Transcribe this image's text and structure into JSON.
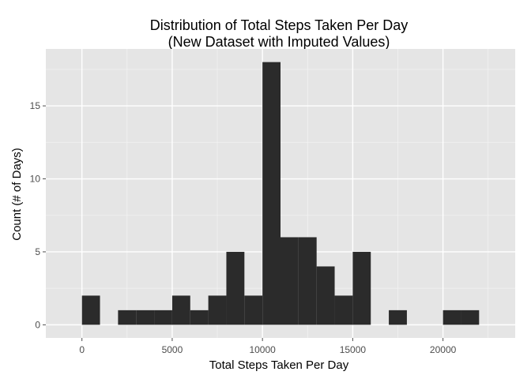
{
  "chart_data": {
    "type": "bar",
    "subtype": "histogram",
    "title_line1": "Distribution of Total Steps Taken Per Day",
    "title_line2": "(New Dataset with Imputed Values)",
    "xlabel": "Total Steps Taken Per Day",
    "ylabel": "Count (# of Days)",
    "bin_width": 1000,
    "bins": [
      {
        "start": 0,
        "count": 2
      },
      {
        "start": 1000,
        "count": 0
      },
      {
        "start": 2000,
        "count": 1
      },
      {
        "start": 3000,
        "count": 1
      },
      {
        "start": 4000,
        "count": 1
      },
      {
        "start": 5000,
        "count": 2
      },
      {
        "start": 6000,
        "count": 1
      },
      {
        "start": 7000,
        "count": 2
      },
      {
        "start": 8000,
        "count": 5
      },
      {
        "start": 9000,
        "count": 2
      },
      {
        "start": 10000,
        "count": 18
      },
      {
        "start": 11000,
        "count": 6
      },
      {
        "start": 12000,
        "count": 6
      },
      {
        "start": 13000,
        "count": 4
      },
      {
        "start": 14000,
        "count": 2
      },
      {
        "start": 15000,
        "count": 5
      },
      {
        "start": 16000,
        "count": 0
      },
      {
        "start": 17000,
        "count": 1
      },
      {
        "start": 18000,
        "count": 0
      },
      {
        "start": 19000,
        "count": 0
      },
      {
        "start": 20000,
        "count": 1
      },
      {
        "start": 21000,
        "count": 1
      }
    ],
    "xlim": [
      -2000,
      24000
    ],
    "ylim": [
      -0.9,
      18.9
    ],
    "x_ticks": [
      0,
      5000,
      10000,
      15000,
      20000
    ],
    "x_tick_labels": [
      "0",
      "5000",
      "10000",
      "15000",
      "20000"
    ],
    "y_ticks": [
      0,
      5,
      10,
      15
    ],
    "y_tick_labels": [
      "0",
      "5",
      "10",
      "15"
    ],
    "grid": true,
    "colors": {
      "panel": "#e5e5e5",
      "grid_major": "#ffffff",
      "grid_minor": "#f2f2f2",
      "bar": "#2b2b2b",
      "tick": "#4d4d4d"
    }
  }
}
